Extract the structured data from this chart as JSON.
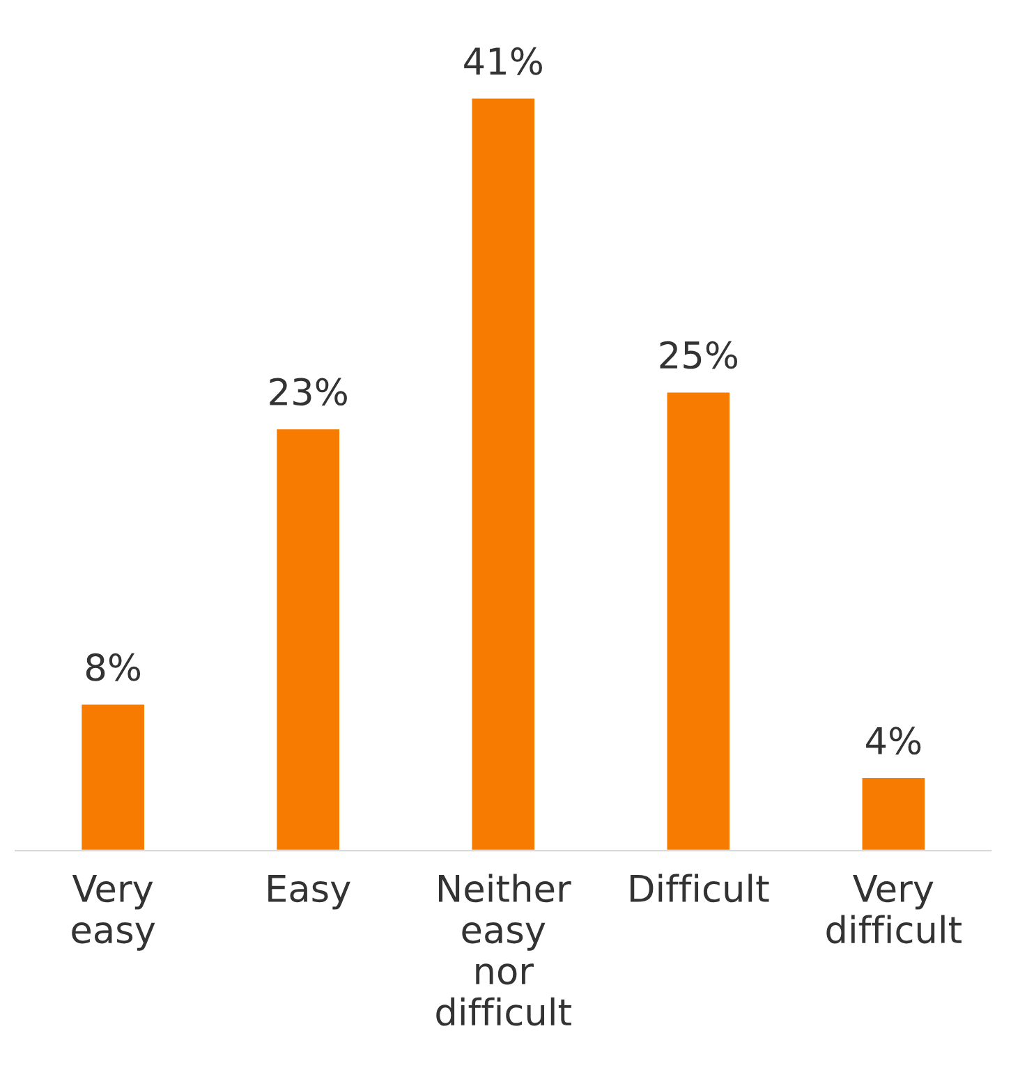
{
  "chart_data": {
    "type": "bar",
    "categories": [
      "Very\neasy",
      "Easy",
      "Neither\neasy\nnor\ndifficult",
      "Difficult",
      "Very\ndifficult"
    ],
    "values": [
      8,
      23,
      41,
      25,
      4
    ],
    "value_labels": [
      "8%",
      "23%",
      "41%",
      "25%",
      "4%"
    ],
    "color": "#f77b00",
    "grid": false,
    "legend": false
  }
}
